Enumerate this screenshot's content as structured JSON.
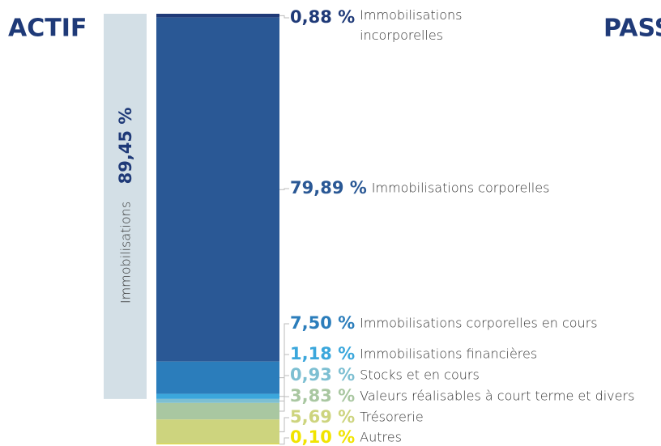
{
  "chart_data": {
    "type": "stacked-bar",
    "title": "ACTIF",
    "second_title": "PASS",
    "ylim": [
      0,
      100
    ],
    "group": {
      "label": "Immobilisations",
      "value": 89.45,
      "value_label": "89,45 %",
      "color": "#d3dfe6"
    },
    "series": [
      {
        "name": "Immobilisations incorporelles",
        "color": "#1f3a78",
        "values": [
          0.88
        ],
        "value_labels": [
          "0,88 %"
        ]
      },
      {
        "name": "Immobilisations corporelles",
        "color": "#2a5895",
        "values": [
          79.89
        ],
        "value_labels": [
          "79,89 %"
        ]
      },
      {
        "name": "Immobilisations corporelles en cours",
        "color": "#2b7dbb",
        "values": [
          7.5
        ],
        "value_labels": [
          "7,50 %"
        ]
      },
      {
        "name": "Immobilisations financières",
        "color": "#3ba7dc",
        "values": [
          1.18
        ],
        "value_labels": [
          "1,18 %"
        ]
      },
      {
        "name": "Stocks et en cours",
        "color": "#7dbfd2",
        "values": [
          0.93
        ],
        "value_labels": [
          "0,93 %"
        ]
      },
      {
        "name": "Valeurs réalisables à court terme et divers",
        "color": "#a9c7a1",
        "values": [
          3.83
        ],
        "value_labels": [
          "3,83 %"
        ]
      },
      {
        "name": "Trésorerie",
        "color": "#cdd47e",
        "values": [
          5.69
        ],
        "value_labels": [
          "5,69 %"
        ]
      },
      {
        "name": "Autres",
        "color": "#f1e400",
        "values": [
          0.1
        ],
        "value_labels": [
          "0,10 %"
        ]
      }
    ]
  }
}
